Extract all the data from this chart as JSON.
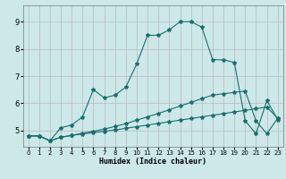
{
  "title": "",
  "xlabel": "Humidex (Indice chaleur)",
  "ylabel": "",
  "bg_color": "#cce8e8",
  "grid_color": "#b8b8c8",
  "line_color": "#1a6e6e",
  "x_ticks": [
    0,
    1,
    2,
    3,
    4,
    5,
    6,
    7,
    8,
    9,
    10,
    11,
    12,
    13,
    14,
    15,
    16,
    17,
    18,
    19,
    20,
    21,
    22,
    23
  ],
  "y_ticks": [
    5,
    6,
    7,
    8,
    9
  ],
  "xlim": [
    -0.5,
    23.5
  ],
  "ylim": [
    4.4,
    9.6
  ],
  "series1_x": [
    0,
    1,
    2,
    3,
    4,
    5,
    6,
    7,
    8,
    9,
    10,
    11,
    12,
    13,
    14,
    15,
    16,
    17,
    18,
    19,
    20,
    21,
    22,
    23
  ],
  "series1_y": [
    4.8,
    4.8,
    4.62,
    4.75,
    4.82,
    4.87,
    4.92,
    4.97,
    5.02,
    5.08,
    5.14,
    5.2,
    5.26,
    5.32,
    5.38,
    5.44,
    5.5,
    5.56,
    5.62,
    5.68,
    5.74,
    5.8,
    5.86,
    5.45
  ],
  "series2_x": [
    0,
    1,
    2,
    3,
    4,
    5,
    6,
    7,
    8,
    9,
    10,
    11,
    12,
    13,
    14,
    15,
    16,
    17,
    18,
    19,
    20,
    21,
    22,
    23
  ],
  "series2_y": [
    4.8,
    4.8,
    4.62,
    4.75,
    4.82,
    4.9,
    4.97,
    5.05,
    5.15,
    5.25,
    5.38,
    5.5,
    5.63,
    5.76,
    5.9,
    6.03,
    6.17,
    6.3,
    6.35,
    6.4,
    6.45,
    5.35,
    4.88,
    5.45
  ],
  "series3_x": [
    0,
    1,
    2,
    3,
    4,
    5,
    6,
    7,
    8,
    9,
    10,
    11,
    12,
    13,
    14,
    15,
    16,
    17,
    18,
    19,
    20,
    21,
    22,
    23
  ],
  "series3_y": [
    4.8,
    4.8,
    4.62,
    5.1,
    5.2,
    5.5,
    6.5,
    6.2,
    6.3,
    6.6,
    7.45,
    8.5,
    8.5,
    8.7,
    9.0,
    9.0,
    8.8,
    7.6,
    7.6,
    7.5,
    5.35,
    4.88,
    6.1,
    5.4
  ]
}
